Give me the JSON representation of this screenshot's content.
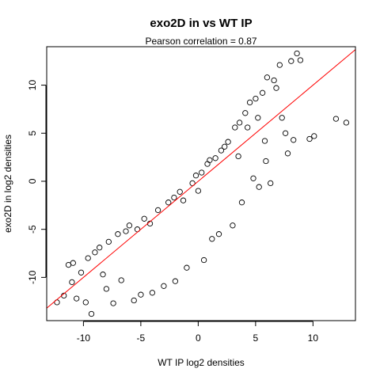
{
  "chart_data": {
    "type": "scatter",
    "title": "exo2D in vs WT IP",
    "subtitle": "Pearson correlation =  0.87",
    "xlabel": "WT IP log2 densities",
    "ylabel": "exo2D in log2 densities",
    "xlim": [
      -13.2,
      13.7
    ],
    "ylim": [
      -14.5,
      14.0
    ],
    "x_ticks": [
      -10,
      -5,
      0,
      5,
      10
    ],
    "y_ticks": [
      -10,
      -5,
      0,
      5,
      10
    ],
    "marker": "open-circle",
    "grid": false,
    "legend": "none",
    "point_color": "#000000",
    "fit_line": {
      "color": "#ff0000",
      "x": [
        -13.2,
        13.7
      ],
      "y": [
        -13.2,
        13.7
      ]
    },
    "points": [
      [
        -12.3,
        -12.6
      ],
      [
        -11.7,
        -11.9
      ],
      [
        -11.3,
        -8.7
      ],
      [
        -10.9,
        -8.5
      ],
      [
        -11.0,
        -10.5
      ],
      [
        -10.6,
        -12.2
      ],
      [
        -10.2,
        -9.5
      ],
      [
        -9.8,
        -12.6
      ],
      [
        -9.6,
        -8.0
      ],
      [
        -9.3,
        -13.8
      ],
      [
        -9.0,
        -7.4
      ],
      [
        -8.6,
        -6.9
      ],
      [
        -8.3,
        -9.7
      ],
      [
        -8.0,
        -11.2
      ],
      [
        -7.8,
        -6.3
      ],
      [
        -7.4,
        -12.7
      ],
      [
        -7.0,
        -5.5
      ],
      [
        -6.7,
        -10.3
      ],
      [
        -6.3,
        -5.2
      ],
      [
        -6.0,
        -4.6
      ],
      [
        -5.6,
        -12.4
      ],
      [
        -5.3,
        -5.0
      ],
      [
        -5.0,
        -11.8
      ],
      [
        -4.7,
        -3.9
      ],
      [
        -4.2,
        -4.4
      ],
      [
        -4.0,
        -11.6
      ],
      [
        -3.5,
        -3.0
      ],
      [
        -3.0,
        -10.9
      ],
      [
        -2.6,
        -2.2
      ],
      [
        -2.1,
        -1.7
      ],
      [
        -2.0,
        -10.4
      ],
      [
        -1.6,
        -1.1
      ],
      [
        -1.3,
        -2.0
      ],
      [
        -1.0,
        -9.0
      ],
      [
        -0.5,
        -0.2
      ],
      [
        -0.2,
        0.6
      ],
      [
        0.0,
        -1.0
      ],
      [
        0.3,
        0.9
      ],
      [
        0.5,
        -8.2
      ],
      [
        0.8,
        1.8
      ],
      [
        1.0,
        2.2
      ],
      [
        1.2,
        -6.0
      ],
      [
        1.5,
        2.4
      ],
      [
        1.8,
        -5.5
      ],
      [
        2.0,
        3.2
      ],
      [
        2.3,
        3.6
      ],
      [
        2.6,
        4.1
      ],
      [
        3.0,
        -4.6
      ],
      [
        3.2,
        5.6
      ],
      [
        3.5,
        2.6
      ],
      [
        3.6,
        6.1
      ],
      [
        3.8,
        -2.2
      ],
      [
        4.1,
        7.1
      ],
      [
        4.3,
        5.6
      ],
      [
        4.5,
        8.2
      ],
      [
        4.8,
        0.3
      ],
      [
        5.0,
        8.6
      ],
      [
        5.2,
        6.6
      ],
      [
        5.3,
        -0.6
      ],
      [
        5.6,
        9.2
      ],
      [
        5.8,
        4.2
      ],
      [
        5.9,
        2.1
      ],
      [
        6.0,
        10.8
      ],
      [
        6.3,
        -0.2
      ],
      [
        6.6,
        10.5
      ],
      [
        6.8,
        9.7
      ],
      [
        7.1,
        12.1
      ],
      [
        7.3,
        6.6
      ],
      [
        7.6,
        5.0
      ],
      [
        7.8,
        2.9
      ],
      [
        8.1,
        12.5
      ],
      [
        8.3,
        4.3
      ],
      [
        8.6,
        13.3
      ],
      [
        8.9,
        12.6
      ],
      [
        9.7,
        4.4
      ],
      [
        10.1,
        4.7
      ],
      [
        12.0,
        6.5
      ],
      [
        12.9,
        6.1
      ]
    ]
  }
}
